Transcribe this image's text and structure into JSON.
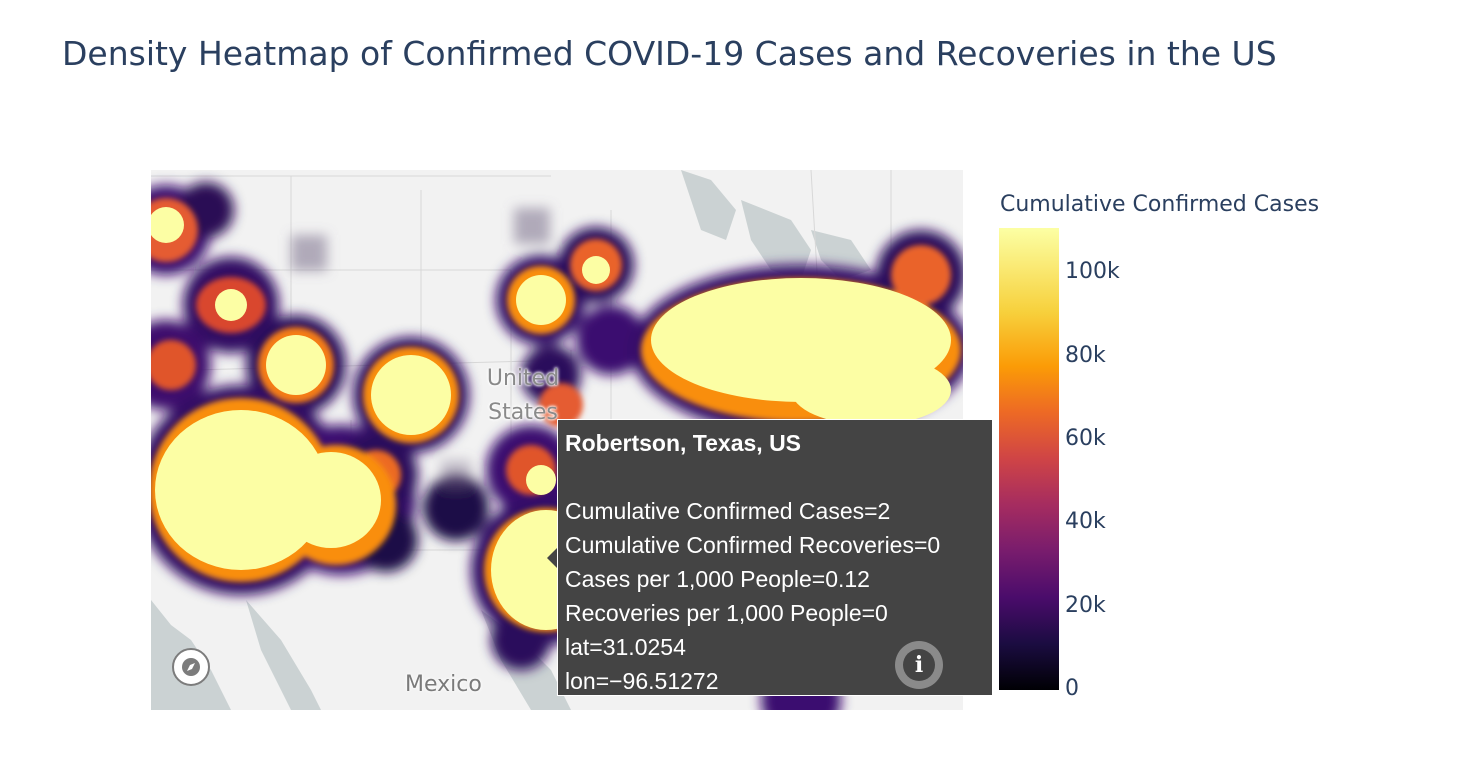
{
  "title": "Density Heatmap of Confirmed COVID-19 Cases and Recoveries in the US",
  "map": {
    "country_label_line1": "United",
    "country_label_line2": "States",
    "neighbor_label": "Mexico",
    "colorscale": "inferno",
    "land_color": "#f2f2f2",
    "water_color": "#cbd2d3"
  },
  "hover": {
    "header": "Robertson, Texas, US",
    "lines": [
      "Cumulative Confirmed Cases=2",
      "Cumulative Confirmed Recoveries=0",
      "Cases per 1,000 People=0.12",
      "Recoveries per 1,000 People=0",
      "lat=31.0254",
      "lon=−96.51272"
    ]
  },
  "icons": {
    "compass": "compass-icon",
    "info": "info-icon"
  },
  "colorbar": {
    "title": "Cumulative Confirmed Cases",
    "min": 0,
    "max": 110000,
    "ticks": [
      "100k",
      "80k",
      "60k",
      "40k",
      "20k",
      "0"
    ]
  }
}
